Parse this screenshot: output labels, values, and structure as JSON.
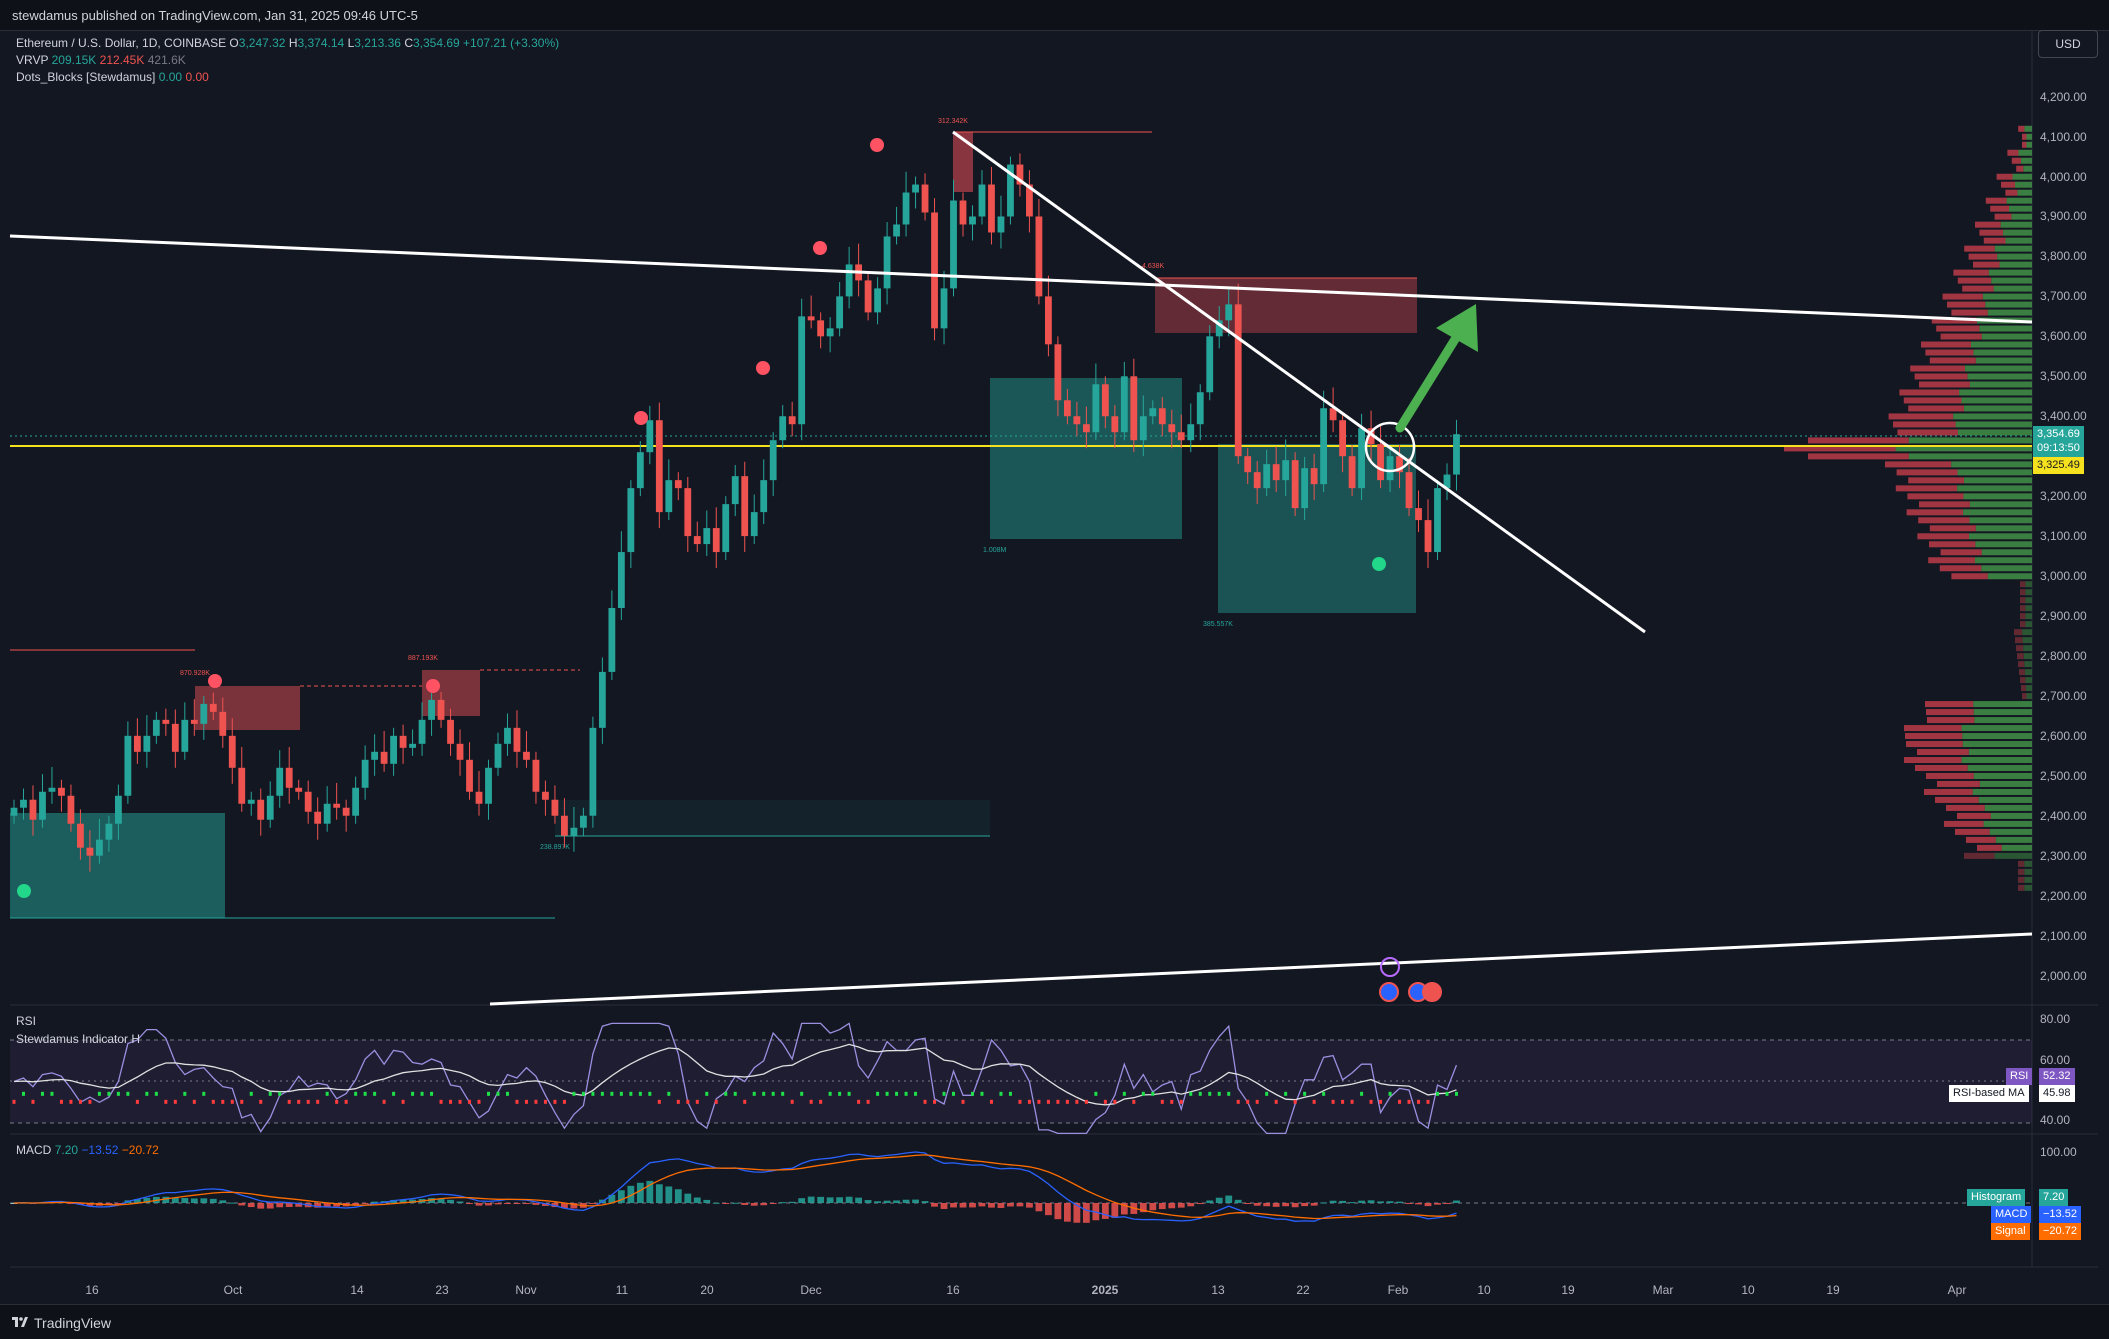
{
  "header": {
    "publish_line": "stewdamus published on TradingView.com, Jan 31, 2025 09:46 UTC-5"
  },
  "legend": {
    "symbol": "Ethereum / U.S. Dollar, 1D, COINBASE",
    "o_label": "O",
    "o_value": "3,247.32",
    "h_label": "H",
    "h_value": "3,374.14",
    "l_label": "L",
    "l_value": "3,213.36",
    "c_label": "C",
    "c_value": "3,354.69",
    "change": "+107.21 (+3.30%)",
    "vrvp_label": "VRVP",
    "vrvp_up": "209.15K",
    "vrvp_down": "212.45K",
    "vrvp_total": "421.6K",
    "dots_label": "Dots_Blocks [Stewdamus]",
    "dots_v1": "0.00",
    "dots_v2": "0.00"
  },
  "currency_button": "USD",
  "price_axis": [
    "4,200.00",
    "4,100.00",
    "4,000.00",
    "3,900.00",
    "3,800.00",
    "3,700.00",
    "3,600.00",
    "3,500.00",
    "3,400.00",
    "3,200.00",
    "3,100.00",
    "3,000.00",
    "2,900.00",
    "2,800.00",
    "2,700.00",
    "2,600.00",
    "2,500.00",
    "2,400.00",
    "2,300.00",
    "2,200.00",
    "2,100.00",
    "2,000.00"
  ],
  "price_tags": {
    "last_price": "3,354.69",
    "countdown": "09:13:50",
    "level": "3,325.49"
  },
  "time_axis": [
    "16",
    "Oct",
    "14",
    "23",
    "Nov",
    "11",
    "20",
    "Dec",
    "16",
    "2025",
    "13",
    "22",
    "Feb",
    "10",
    "19",
    "Mar",
    "10",
    "19",
    "Apr"
  ],
  "block_volumes": [
    "312.342K",
    "4.638K",
    "1.008M",
    "385.557K",
    "870.928K",
    "887.193K",
    "238.897K"
  ],
  "rsi": {
    "title": "RSI",
    "indicator": "Stewdamus Indicator H",
    "axis": [
      "80.00",
      "60.00",
      "40.00"
    ],
    "rsi_label": "RSI",
    "rsi_value": "52.32",
    "ma_label": "RSI-based MA",
    "ma_value": "45.98"
  },
  "macd": {
    "title": "MACD",
    "v1": "7.20",
    "v2": "−13.52",
    "v3": "−20.72",
    "axis_top": "100.00",
    "hist_label": "Histogram",
    "hist_value": "7.20",
    "macd_label": "MACD",
    "macd_value": "−13.52",
    "signal_label": "Signal",
    "signal_value": "−20.72"
  },
  "footer": {
    "brand": "TradingView"
  },
  "colors": {
    "bull": "#26a69a",
    "bear": "#ef5350",
    "level": "#f5e11d",
    "background": "#131722"
  },
  "chart_data": {
    "type": "candlestick",
    "symbol": "ETH/USD",
    "interval": "1D",
    "exchange": "COINBASE",
    "ylim": [
      1960,
      4260
    ],
    "last_close": 3354.69,
    "horizontal_level": 3325.49,
    "closes_approx": [
      2420,
      2440,
      2390,
      2460,
      2470,
      2450,
      2380,
      2320,
      2300,
      2340,
      2380,
      2450,
      2600,
      2560,
      2600,
      2640,
      2630,
      2560,
      2640,
      2630,
      2680,
      2660,
      2600,
      2520,
      2430,
      2440,
      2390,
      2450,
      2520,
      2470,
      2460,
      2410,
      2380,
      2430,
      2420,
      2400,
      2470,
      2540,
      2560,
      2530,
      2600,
      2570,
      2580,
      2640,
      2690,
      2640,
      2580,
      2540,
      2460,
      2430,
      2520,
      2580,
      2620,
      2560,
      2540,
      2460,
      2440,
      2400,
      2350,
      2370,
      2400,
      2620,
      2760,
      2920,
      3060,
      3220,
      3310,
      3390,
      3160,
      3240,
      3220,
      3100,
      3080,
      3120,
      3060,
      3180,
      3250,
      3100,
      3160,
      3240,
      3340,
      3400,
      3380,
      3650,
      3640,
      3600,
      3620,
      3700,
      3780,
      3740,
      3660,
      3720,
      3850,
      3880,
      3960,
      3980,
      3910,
      3620,
      3720,
      3940,
      3880,
      3900,
      3980,
      3860,
      3900,
      4030,
      3980,
      3900,
      3700,
      3580,
      3440,
      3400,
      3380,
      3360,
      3480,
      3400,
      3360,
      3500,
      3340,
      3400,
      3420,
      3380,
      3360,
      3340,
      3380,
      3460,
      3600,
      3640,
      3680,
      3300,
      3260,
      3220,
      3280,
      3240,
      3290,
      3170,
      3270,
      3230,
      3420,
      3390,
      3300,
      3220,
      3370,
      3330,
      3240,
      3300,
      3260,
      3170,
      3140,
      3060,
      3220,
      3254,
      3355
    ]
  }
}
